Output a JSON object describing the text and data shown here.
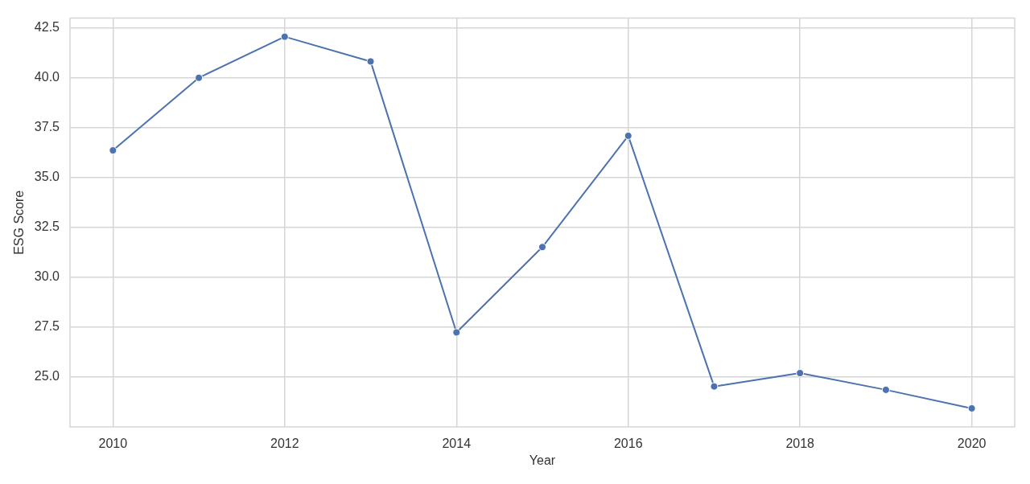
{
  "chart_data": {
    "type": "line",
    "xlabel": "Year",
    "ylabel": "ESG Score",
    "x": [
      2010,
      2011,
      2012,
      2013,
      2014,
      2015,
      2016,
      2017,
      2018,
      2019,
      2020
    ],
    "values": [
      36.36,
      40.0,
      42.06,
      40.82,
      27.23,
      31.51,
      37.09,
      24.52,
      25.19,
      24.35,
      23.42
    ],
    "color": "#4c72b0",
    "xlim": [
      2009.5,
      2020.5
    ],
    "xticks": [
      2010,
      2012,
      2014,
      2016,
      2018,
      2020
    ],
    "ylim": [
      22.49,
      42.99
    ],
    "yticks": [
      {
        "value": 25,
        "label": "25.0"
      },
      27.5,
      {
        "value": 30,
        "label": "30.0"
      },
      32.5,
      {
        "value": 35,
        "label": "35.0"
      },
      37.5,
      {
        "value": 40,
        "label": "40.0"
      },
      42.5
    ],
    "grid": true,
    "marker": "circle",
    "line_style": "solid"
  }
}
